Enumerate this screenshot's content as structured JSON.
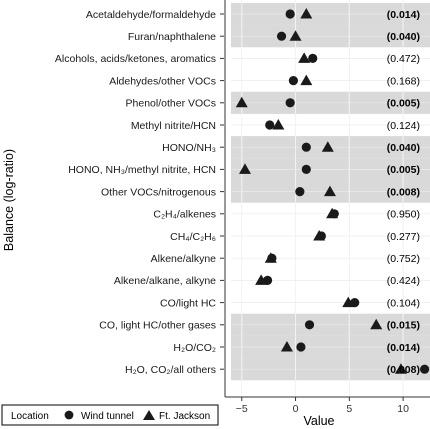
{
  "chart_data": {
    "type": "scatter",
    "xlabel": "Value",
    "ylabel": "Balance (log-ratio)",
    "xlim": [
      -6,
      12.5
    ],
    "x_ticks": [
      -5,
      0,
      5,
      10
    ],
    "grid": true,
    "legend": {
      "title": "Location",
      "placement": "bottom-left"
    },
    "series": [
      {
        "name": "Wind tunnel",
        "marker": "circle"
      },
      {
        "name": "Ft. Jackson",
        "marker": "triangle"
      }
    ],
    "rows": [
      {
        "label": "Acetaldehyde/formaldehyde",
        "wind": -0.5,
        "ft": 1.0,
        "p": "(0.014)",
        "sig": true
      },
      {
        "label": "Furan/naphthalene",
        "wind": -1.3,
        "ft": 0.0,
        "p": "(0.040)",
        "sig": true
      },
      {
        "label": "Alcohols, acids/ketones, aromatics",
        "wind": 1.6,
        "ft": 0.8,
        "p": "(0.472)",
        "sig": false
      },
      {
        "label": "Aldehydes/other VOCs",
        "wind": -0.2,
        "ft": 1.0,
        "p": "(0.168)",
        "sig": false
      },
      {
        "label": "Phenol/other VOCs",
        "wind": -0.5,
        "ft": -5.0,
        "p": "(0.005)",
        "sig": true
      },
      {
        "label": "Methyl nitrite/HCN",
        "wind": -2.4,
        "ft": -1.6,
        "p": "(0.124)",
        "sig": false
      },
      {
        "label": "HONO/NH₃",
        "wind": 1.0,
        "ft": 3.0,
        "p": "(0.040)",
        "sig": true
      },
      {
        "label": "HONO, NH₃/methyl nitrite, HCN",
        "wind": 1.0,
        "ft": -4.7,
        "p": "(0.005)",
        "sig": true
      },
      {
        "label": "Other VOCs/nitrogenous",
        "wind": 0.4,
        "ft": 3.2,
        "p": "(0.008)",
        "sig": true
      },
      {
        "label": "C₂H₄/alkenes",
        "wind": 3.6,
        "ft": 3.4,
        "p": "(0.950)",
        "sig": false
      },
      {
        "label": "CH₄/C₂H₆",
        "wind": 2.4,
        "ft": 2.2,
        "p": "(0.277)",
        "sig": false
      },
      {
        "label": "Alkene/alkyne",
        "wind": -2.2,
        "ft": -2.3,
        "p": "(0.752)",
        "sig": false
      },
      {
        "label": "Alkene/alkane, alkyne",
        "wind": -2.6,
        "ft": -3.2,
        "p": "(0.424)",
        "sig": false
      },
      {
        "label": "CO/light HC",
        "wind": 5.5,
        "ft": 4.9,
        "p": "(0.104)",
        "sig": false
      },
      {
        "label": "CO, light HC/other gases",
        "wind": 1.3,
        "ft": 7.5,
        "p": "(0.015)",
        "sig": true
      },
      {
        "label": "H₂O/CO₂",
        "wind": 0.5,
        "ft": -0.8,
        "p": "(0.014)",
        "sig": true
      },
      {
        "label": "H₂O, CO₂/all others",
        "wind": 12.0,
        "ft": 9.8,
        "p": "(0.008)",
        "sig": true
      }
    ]
  }
}
